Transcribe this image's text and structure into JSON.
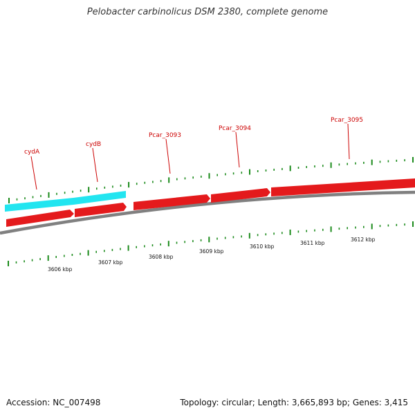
{
  "title": "Pelobacter carbinolicus DSM 2380, complete genome",
  "footer": {
    "accession": "Accession: NC_007498",
    "summary": "Topology: circular; Length: 3,665,893 bp; Genes: 3,415"
  },
  "colors": {
    "gene_forward": "#e41a1c",
    "gene_highlight": "#22e5f0",
    "backbone": "#808080",
    "tick": "#1a8a1a",
    "gene_label": "#cc0000"
  },
  "scale": {
    "unit": "kbp",
    "labels": [
      {
        "kbp": 3606,
        "text": "3606 kbp"
      },
      {
        "kbp": 3607,
        "text": "3607 kbp"
      },
      {
        "kbp": 3608,
        "text": "3608 kbp"
      },
      {
        "kbp": 3609,
        "text": "3609 kbp"
      },
      {
        "kbp": 3610,
        "text": "3610 kbp"
      },
      {
        "kbp": 3611,
        "text": "3611 kbp"
      },
      {
        "kbp": 3612,
        "text": "3612 kbp"
      }
    ]
  },
  "genes": [
    {
      "label": "cydA",
      "strand": "+",
      "track": "highlight"
    },
    {
      "label": "cydB",
      "strand": "+",
      "track": "highlight"
    },
    {
      "label": "Pcar_3093",
      "strand": "+",
      "track": "gene"
    },
    {
      "label": "Pcar_3094",
      "strand": "+",
      "track": "gene"
    },
    {
      "label": "Pcar_3095",
      "strand": "+",
      "track": "gene"
    }
  ]
}
